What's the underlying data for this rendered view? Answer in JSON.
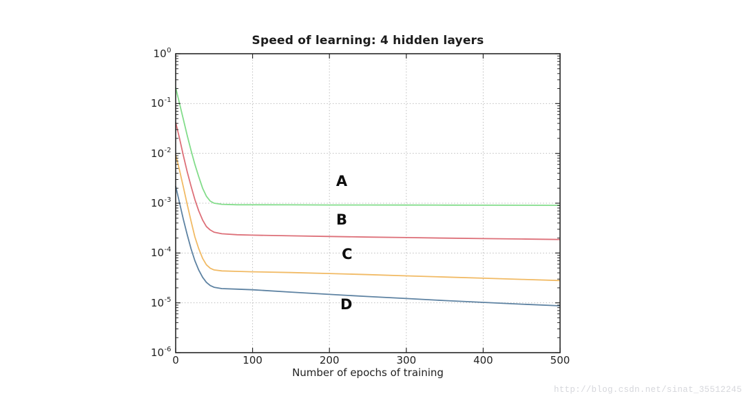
{
  "page": {
    "background": "#ffffff"
  },
  "watermark": {
    "text": "http://blog.csdn.net/sinat_35512245",
    "color": "#d6d7dc"
  },
  "chart_data": {
    "type": "line",
    "title": "Speed of learning: 4 hidden layers",
    "xlabel": "Number of epochs of training",
    "ylabel": "",
    "x_ticks": [
      0,
      100,
      200,
      300,
      400,
      500
    ],
    "y_tick_exponents": [
      0,
      -1,
      -2,
      -3,
      -4,
      -5,
      -6
    ],
    "xlim": [
      0,
      500
    ],
    "ylim": [
      1e-06,
      1
    ],
    "y_scale": "log",
    "grid": true,
    "grid_style": "dotted",
    "legend_position": "none",
    "colors": {
      "A": "#82dc8a",
      "B": "#dd6f78",
      "C": "#f1ba64",
      "D": "#5d82a2",
      "grid": "#bcbcbc",
      "axis": "#262626"
    },
    "series": [
      {
        "name": "A",
        "color": "#82dc8a",
        "points": [
          [
            0,
            0.21
          ],
          [
            5,
            0.1
          ],
          [
            10,
            0.048
          ],
          [
            15,
            0.023
          ],
          [
            20,
            0.0115
          ],
          [
            25,
            0.006
          ],
          [
            30,
            0.0034
          ],
          [
            35,
            0.002
          ],
          [
            40,
            0.00138
          ],
          [
            45,
            0.0011
          ],
          [
            50,
            0.001
          ],
          [
            60,
            0.00095
          ],
          [
            80,
            0.00093
          ],
          [
            100,
            0.000928
          ],
          [
            150,
            0.000925
          ],
          [
            200,
            0.000922
          ],
          [
            250,
            0.00092
          ],
          [
            300,
            0.000918
          ],
          [
            350,
            0.000915
          ],
          [
            400,
            0.000912
          ],
          [
            450,
            0.000908
          ],
          [
            500,
            0.000905
          ]
        ]
      },
      {
        "name": "B",
        "color": "#dd6f78",
        "points": [
          [
            0,
            0.042
          ],
          [
            5,
            0.02
          ],
          [
            10,
            0.009
          ],
          [
            15,
            0.0043
          ],
          [
            20,
            0.0022
          ],
          [
            25,
            0.00118
          ],
          [
            30,
            0.0007
          ],
          [
            35,
            0.00046
          ],
          [
            40,
            0.00034
          ],
          [
            45,
            0.00029
          ],
          [
            50,
            0.000262
          ],
          [
            60,
            0.000243
          ],
          [
            80,
            0.000233
          ],
          [
            100,
            0.000228
          ],
          [
            150,
            0.000221
          ],
          [
            200,
            0.000215
          ],
          [
            250,
            0.000209
          ],
          [
            300,
            0.000204
          ],
          [
            350,
            0.000199
          ],
          [
            400,
            0.000195
          ],
          [
            450,
            0.000191
          ],
          [
            500,
            0.000187
          ]
        ]
      },
      {
        "name": "C",
        "color": "#f1ba64",
        "points": [
          [
            0,
            0.0095
          ],
          [
            5,
            0.0046
          ],
          [
            10,
            0.0021
          ],
          [
            15,
            0.00095
          ],
          [
            20,
            0.00044
          ],
          [
            25,
            0.00021
          ],
          [
            30,
            0.000122
          ],
          [
            35,
            7.8e-05
          ],
          [
            40,
            5.8e-05
          ],
          [
            45,
            4.95e-05
          ],
          [
            50,
            4.58e-05
          ],
          [
            60,
            4.38e-05
          ],
          [
            80,
            4.28e-05
          ],
          [
            100,
            4.2e-05
          ],
          [
            150,
            4.05e-05
          ],
          [
            200,
            3.88e-05
          ],
          [
            250,
            3.68e-05
          ],
          [
            300,
            3.48e-05
          ],
          [
            350,
            3.3e-05
          ],
          [
            400,
            3.12e-05
          ],
          [
            450,
            2.96e-05
          ],
          [
            500,
            2.8e-05
          ]
        ]
      },
      {
        "name": "D",
        "color": "#5d82a2",
        "points": [
          [
            0,
            0.0022
          ],
          [
            5,
            0.00102
          ],
          [
            10,
            0.00047
          ],
          [
            15,
            0.000235
          ],
          [
            20,
            0.000122
          ],
          [
            25,
            7e-05
          ],
          [
            30,
            4.55e-05
          ],
          [
            35,
            3.25e-05
          ],
          [
            40,
            2.58e-05
          ],
          [
            45,
            2.22e-05
          ],
          [
            50,
            2.05e-05
          ],
          [
            60,
            1.93e-05
          ],
          [
            80,
            1.88e-05
          ],
          [
            100,
            1.83e-05
          ],
          [
            150,
            1.64e-05
          ],
          [
            200,
            1.48e-05
          ],
          [
            250,
            1.34e-05
          ],
          [
            300,
            1.22e-05
          ],
          [
            350,
            1.11e-05
          ],
          [
            400,
            1.02e-05
          ],
          [
            450,
            9.4e-06
          ],
          [
            500,
            8.7e-06
          ]
        ]
      }
    ],
    "annotations": [
      {
        "text": "A",
        "epoch": 216,
        "value": 0.00277
      },
      {
        "text": "B",
        "epoch": 216,
        "value": 0.00046
      },
      {
        "text": "C",
        "epoch": 223,
        "value": 9.5e-05
      },
      {
        "text": "D",
        "epoch": 222,
        "value": 9.3e-06
      }
    ]
  }
}
